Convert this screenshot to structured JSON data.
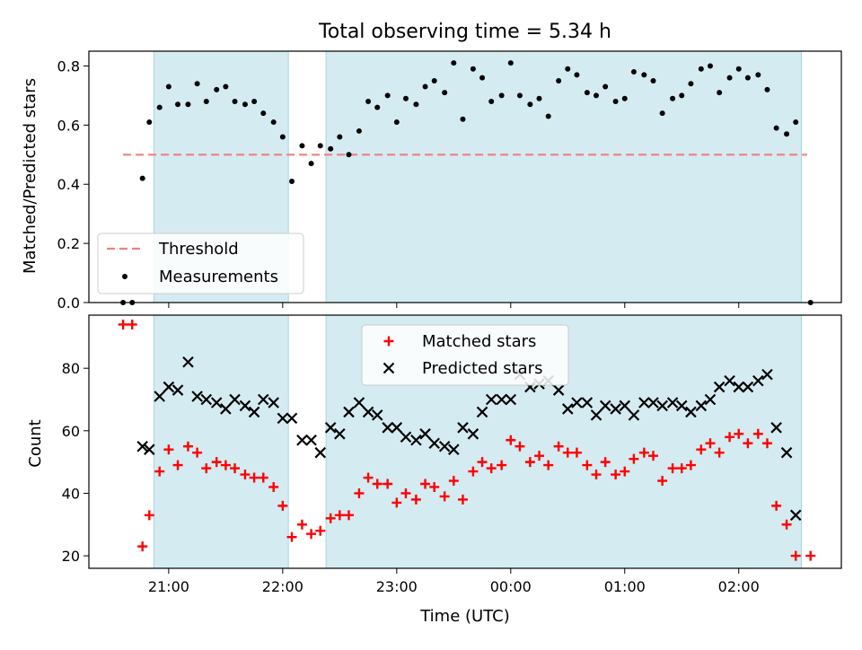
{
  "chart_data": [
    {
      "type": "scatter",
      "title": "Total observing time = 5.34 h",
      "xlabel": "",
      "ylabel": "Matched/Predicted stars",
      "xlim_hours": [
        20.3,
        26.9
      ],
      "ylim": [
        0.0,
        0.85
      ],
      "yticks": [
        0.0,
        0.2,
        0.4,
        0.6,
        0.8
      ],
      "ytick_labels": [
        "0.0",
        "0.2",
        "0.4",
        "0.6",
        "0.8"
      ],
      "shaded_regions_hours": [
        [
          20.87,
          22.05
        ],
        [
          22.38,
          26.55
        ]
      ],
      "threshold": {
        "name": "Threshold",
        "value": 0.5,
        "x_hours": [
          20.6,
          26.6
        ],
        "color": "#f08080"
      },
      "legend": {
        "placement": "lower-left",
        "entries": [
          "Threshold",
          "Measurements"
        ]
      },
      "series": [
        {
          "name": "Measurements",
          "color": "#000000",
          "x_hours": [
            20.6,
            20.68,
            20.77,
            20.83,
            20.92,
            21.0,
            21.08,
            21.17,
            21.25,
            21.33,
            21.42,
            21.5,
            21.58,
            21.67,
            21.75,
            21.83,
            21.92,
            22.0,
            22.08,
            22.17,
            22.25,
            22.33,
            22.42,
            22.5,
            22.58,
            22.67,
            22.75,
            22.83,
            22.92,
            23.0,
            23.08,
            23.17,
            23.25,
            23.33,
            23.42,
            23.5,
            23.58,
            23.67,
            23.75,
            23.83,
            23.92,
            24.0,
            24.08,
            24.17,
            24.25,
            24.33,
            24.42,
            24.5,
            24.58,
            24.67,
            24.75,
            24.83,
            24.92,
            25.0,
            25.08,
            25.17,
            25.25,
            25.33,
            25.42,
            25.5,
            25.58,
            25.67,
            25.75,
            25.83,
            25.92,
            26.0,
            26.08,
            26.17,
            26.25,
            26.33,
            26.42,
            26.5,
            26.63
          ],
          "values": [
            0.0,
            0.0,
            0.42,
            0.61,
            0.66,
            0.73,
            0.67,
            0.67,
            0.74,
            0.68,
            0.72,
            0.73,
            0.68,
            0.67,
            0.68,
            0.64,
            0.61,
            0.56,
            0.41,
            0.53,
            0.47,
            0.53,
            0.52,
            0.56,
            0.5,
            0.58,
            0.68,
            0.66,
            0.7,
            0.61,
            0.69,
            0.67,
            0.73,
            0.75,
            0.71,
            0.81,
            0.62,
            0.79,
            0.76,
            0.68,
            0.7,
            0.81,
            0.7,
            0.67,
            0.69,
            0.63,
            0.75,
            0.79,
            0.77,
            0.71,
            0.7,
            0.73,
            0.68,
            0.69,
            0.78,
            0.77,
            0.75,
            0.64,
            0.69,
            0.7,
            0.74,
            0.79,
            0.8,
            0.71,
            0.76,
            0.79,
            0.76,
            0.77,
            0.72,
            0.59,
            0.57,
            0.61,
            0.0
          ]
        }
      ]
    },
    {
      "type": "scatter",
      "title": "",
      "xlabel": "Time (UTC)",
      "ylabel": "Count",
      "xlim_hours": [
        20.3,
        26.9
      ],
      "ylim": [
        16,
        97
      ],
      "yticks": [
        20,
        40,
        60,
        80
      ],
      "ytick_labels": [
        "20",
        "40",
        "60",
        "80"
      ],
      "xticks_hours": [
        21,
        22,
        23,
        24,
        25,
        26
      ],
      "xtick_labels": [
        "21:00",
        "22:00",
        "23:00",
        "00:00",
        "01:00",
        "02:00"
      ],
      "shaded_regions_hours": [
        [
          20.87,
          22.05
        ],
        [
          22.38,
          26.55
        ]
      ],
      "legend": {
        "placement": "upper-center",
        "entries": [
          "Matched stars",
          "Predicted stars"
        ]
      },
      "series": [
        {
          "name": "Matched stars",
          "marker": "plus",
          "color": "#ff0000",
          "x_hours": [
            20.6,
            20.68,
            20.77,
            20.83,
            20.92,
            21.0,
            21.08,
            21.17,
            21.25,
            21.33,
            21.42,
            21.5,
            21.58,
            21.67,
            21.75,
            21.83,
            21.92,
            22.0,
            22.08,
            22.17,
            22.25,
            22.33,
            22.42,
            22.5,
            22.58,
            22.67,
            22.75,
            22.83,
            22.92,
            23.0,
            23.08,
            23.17,
            23.25,
            23.33,
            23.42,
            23.5,
            23.58,
            23.67,
            23.75,
            23.83,
            23.92,
            24.0,
            24.08,
            24.17,
            24.25,
            24.33,
            24.42,
            24.5,
            24.58,
            24.67,
            24.75,
            24.83,
            24.92,
            25.0,
            25.08,
            25.17,
            25.25,
            25.33,
            25.42,
            25.5,
            25.58,
            25.67,
            25.75,
            25.83,
            25.92,
            26.0,
            26.08,
            26.17,
            26.25,
            26.33,
            26.42,
            26.5,
            26.63
          ],
          "values": [
            94,
            94,
            23,
            33,
            47,
            54,
            49,
            55,
            53,
            48,
            50,
            49,
            48,
            46,
            45,
            45,
            42,
            36,
            26,
            30,
            27,
            28,
            32,
            33,
            33,
            40,
            45,
            43,
            43,
            37,
            40,
            38,
            43,
            42,
            39,
            44,
            38,
            47,
            50,
            48,
            49,
            57,
            55,
            50,
            52,
            49,
            55,
            53,
            53,
            49,
            46,
            50,
            46,
            47,
            51,
            53,
            52,
            44,
            48,
            48,
            49,
            54,
            56,
            53,
            58,
            59,
            56,
            59,
            56,
            36,
            30,
            20,
            20
          ]
        },
        {
          "name": "Predicted stars",
          "marker": "x",
          "color": "#000000",
          "x_hours": [
            20.77,
            20.83,
            20.92,
            21.0,
            21.08,
            21.17,
            21.25,
            21.33,
            21.42,
            21.5,
            21.58,
            21.67,
            21.75,
            21.83,
            21.92,
            22.0,
            22.08,
            22.17,
            22.25,
            22.33,
            22.42,
            22.5,
            22.58,
            22.67,
            22.75,
            22.83,
            22.92,
            23.0,
            23.08,
            23.17,
            23.25,
            23.33,
            23.42,
            23.5,
            23.58,
            23.67,
            23.75,
            23.83,
            23.92,
            24.0,
            24.08,
            24.17,
            24.25,
            24.33,
            24.42,
            24.5,
            24.58,
            24.67,
            24.75,
            24.83,
            24.92,
            25.0,
            25.08,
            25.17,
            25.25,
            25.33,
            25.42,
            25.5,
            25.58,
            25.67,
            25.75,
            25.83,
            25.92,
            26.0,
            26.08,
            26.17,
            26.25,
            26.33,
            26.42,
            26.5
          ],
          "values": [
            55,
            54,
            71,
            74,
            73,
            82,
            71,
            70,
            69,
            67,
            70,
            68,
            66,
            70,
            69,
            64,
            64,
            57,
            57,
            53,
            61,
            59,
            66,
            69,
            66,
            65,
            61,
            61,
            58,
            57,
            59,
            56,
            55,
            54,
            61,
            59,
            66,
            70,
            70,
            70,
            78,
            74,
            75,
            76,
            73,
            67,
            69,
            69,
            65,
            68,
            67,
            68,
            65,
            69,
            69,
            68,
            69,
            68,
            66,
            68,
            70,
            74,
            76,
            74,
            74,
            76,
            78,
            61,
            53,
            33
          ]
        }
      ]
    }
  ]
}
